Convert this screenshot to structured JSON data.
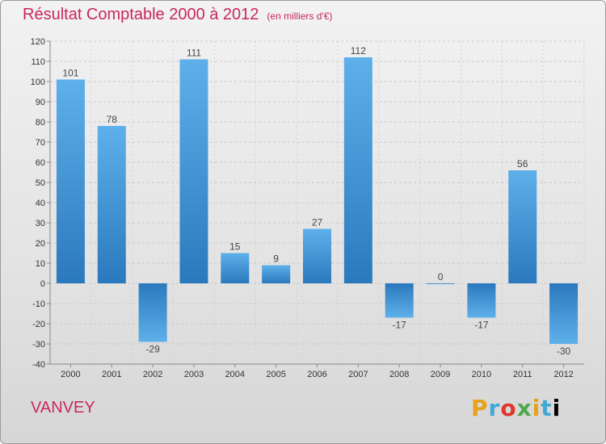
{
  "header": {
    "title": "Résultat Comptable 2000 à 2012",
    "unit": "(en milliers d'€)"
  },
  "footer": {
    "commune": "VANVEY",
    "logo_letters": [
      "P",
      "r",
      "o",
      "x",
      "i",
      "t",
      "i"
    ]
  },
  "colors": {
    "title": "#c8285a",
    "bar_light": "#5aaee8",
    "bar_dark": "#2a7bc0"
  },
  "chart_data": {
    "type": "bar",
    "title": "Résultat Comptable 2000 à 2012",
    "subtitle": "(en milliers d'€)",
    "categories": [
      "2000",
      "2001",
      "2002",
      "2003",
      "2004",
      "2005",
      "2006",
      "2007",
      "2008",
      "2009",
      "2010",
      "2011",
      "2012"
    ],
    "values": [
      101,
      78,
      -29,
      111,
      15,
      9,
      27,
      112,
      -17,
      0,
      -17,
      56,
      -30
    ],
    "ylim": [
      -40,
      120
    ],
    "yticks": [
      -40,
      -30,
      -20,
      -10,
      0,
      10,
      20,
      30,
      40,
      50,
      60,
      70,
      80,
      90,
      100,
      110,
      120
    ],
    "xlabel": "",
    "ylabel": "",
    "grid": true
  }
}
